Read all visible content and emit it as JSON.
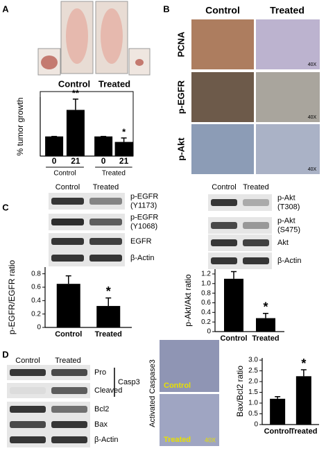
{
  "panel_labels": [
    "A",
    "B",
    "C",
    "D"
  ],
  "panel_a": {
    "photo_labels": [
      "Control",
      "Treated"
    ]
  },
  "panel_b": {
    "columns": [
      "Control",
      "Treated"
    ],
    "rows": [
      "PCNA",
      "p-EGFR",
      "p-Akt"
    ],
    "magnification": "40X"
  },
  "panel_c": {
    "egfr_blot": {
      "columns": [
        "Control",
        "Treated"
      ],
      "rows": [
        [
          "p-EGFR",
          "(Y1173)"
        ],
        [
          "p-EGFR",
          "(Y1068)"
        ],
        [
          "EGFR"
        ],
        [
          "β-Actin"
        ]
      ]
    },
    "akt_blot": {
      "columns": [
        "Control",
        "Treated"
      ],
      "rows": [
        [
          "p-Akt",
          "(T308)"
        ],
        [
          "p-Akt",
          "(S475)"
        ],
        [
          "Akt"
        ],
        [
          "β-Actin"
        ]
      ]
    }
  },
  "panel_d": {
    "blot": {
      "columns": [
        "Control",
        "Treated"
      ],
      "rows": [
        "Pro",
        "Cleaved",
        "Bcl2",
        "Bax",
        "β-Actin"
      ],
      "bracket_label": "Casp3"
    },
    "histology": {
      "label": "Activated Caspase3",
      "panels": [
        "Control",
        "Treated"
      ],
      "magnification": "40X"
    }
  },
  "chart_data": [
    {
      "type": "bar",
      "y_label": "% tumor growth",
      "categories": [
        "0",
        "21",
        "0",
        "21"
      ],
      "group_labels": [
        "Control",
        "Treated"
      ],
      "values": [
        100,
        235,
        100,
        72
      ],
      "errors": [
        0,
        55,
        0,
        20
      ],
      "annotations": [
        null,
        "**",
        null,
        "*"
      ],
      "color": "#000000",
      "ylim": [
        0,
        300
      ]
    },
    {
      "type": "bar",
      "y_label": "p-EGFR/EGFR ratio",
      "categories": [
        "Control",
        "Treated"
      ],
      "values": [
        0.65,
        0.32
      ],
      "errors": [
        0.12,
        0.12
      ],
      "annotations": [
        null,
        "*"
      ],
      "color": "#000000",
      "ylim": [
        0,
        0.9
      ],
      "yticks": [
        0,
        0.2,
        0.4,
        0.6,
        0.8
      ]
    },
    {
      "type": "bar",
      "y_label": "p-Akt/Akt ratio",
      "categories": [
        "Control",
        "Treated"
      ],
      "values": [
        1.1,
        0.28
      ],
      "errors": [
        0.15,
        0.1
      ],
      "annotations": [
        null,
        "*"
      ],
      "color": "#000000",
      "ylim": [
        0,
        1.3
      ],
      "yticks": [
        0,
        0.2,
        0.4,
        0.6,
        0.8,
        {
          "value": 1,
          "label": "1.0"
        },
        1.2
      ]
    },
    {
      "type": "bar",
      "y_label": "Bax/Bcl2 ratio",
      "categories": [
        "Control",
        "Treated"
      ],
      "values": [
        1.2,
        2.25
      ],
      "errors": [
        0.1,
        0.3
      ],
      "annotations": [
        null,
        "*"
      ],
      "color": "#000000",
      "ylim": [
        0,
        3.1
      ],
      "yticks": [
        0,
        0.5,
        {
          "value": 1,
          "label": "1.0"
        },
        1.5,
        {
          "value": 2,
          "label": "2.0"
        },
        2.5,
        {
          "value": 3,
          "label": "3.0"
        }
      ]
    }
  ]
}
